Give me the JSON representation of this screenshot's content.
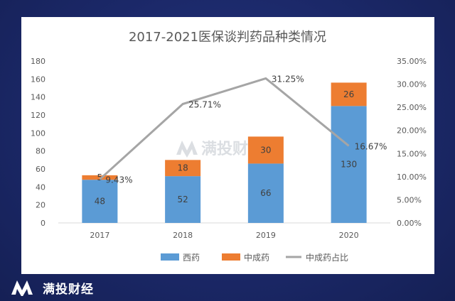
{
  "chart_data": {
    "type": "bar",
    "title": "2017-2021医保谈判药品种类情况",
    "categories": [
      "2017",
      "2018",
      "2019",
      "2020"
    ],
    "series": [
      {
        "name": "西药",
        "type": "bar",
        "stack": "total",
        "values": [
          48,
          52,
          66,
          130
        ],
        "color": "#5b9bd5"
      },
      {
        "name": "中成药",
        "type": "bar",
        "stack": "total",
        "values": [
          5,
          18,
          30,
          26
        ],
        "color": "#ed7d31"
      },
      {
        "name": "中成药占比",
        "type": "line",
        "axis": "right",
        "values": [
          9.43,
          25.71,
          31.25,
          16.67
        ],
        "labels": [
          "9.43%",
          "25.71%",
          "31.25%",
          "16.67%"
        ],
        "color": "#a5a5a5"
      }
    ],
    "ylim": [
      0,
      180
    ],
    "yticks": [
      "0",
      "20",
      "40",
      "60",
      "80",
      "100",
      "120",
      "140",
      "160",
      "180"
    ],
    "y2lim": [
      0,
      35
    ],
    "y2ticks": [
      "0.00%",
      "5.00%",
      "10.00%",
      "15.00%",
      "20.00%",
      "25.00%",
      "30.00%",
      "35.00%"
    ],
    "legend_position": "bottom",
    "grid": false
  },
  "watermark": "满投财经",
  "brand": {
    "name": "满投财经"
  }
}
